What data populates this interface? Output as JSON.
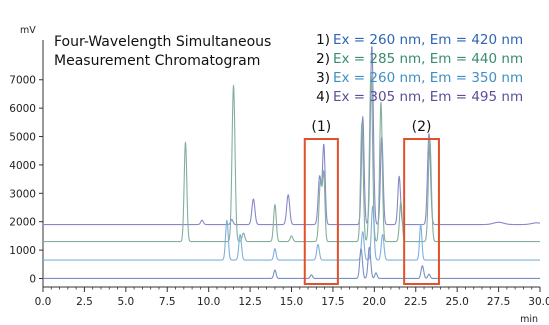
{
  "chart_data": {
    "type": "line",
    "title": "Four-Wavelength Simultaneous\nMeasurement Chromatogram",
    "title_lines": [
      "Four-Wavelength Simultaneous",
      "Measurement Chromatogram"
    ],
    "y_unit": "mV",
    "x_unit": "min",
    "xlim": [
      0.0,
      30.0
    ],
    "ylim": [
      -300,
      8400
    ],
    "x_ticks": [
      "0.0",
      "2.5",
      "5.0",
      "7.5",
      "10.0",
      "12.5",
      "15.0",
      "17.5",
      "20.0",
      "22.5",
      "25.0",
      "27.5",
      "30.0"
    ],
    "y_ticks": [
      "0",
      "1000",
      "2000",
      "3000",
      "4000",
      "5000",
      "6000",
      "7000"
    ],
    "legend_position": "top-right",
    "legend": [
      {
        "number": "1)",
        "label": "Ex = 260 nm, Em = 420 nm",
        "color": "#2c66b5"
      },
      {
        "number": "2)",
        "label": "Ex = 285 nm, Em = 440 nm",
        "color": "#3a8c74"
      },
      {
        "number": "3)",
        "label": "Ex = 260 nm, Em = 350 nm",
        "color": "#3f8fc6"
      },
      {
        "number": "4)",
        "label": "Ex = 305 nm, Em = 495 nm",
        "color": "#5c4f9a"
      }
    ],
    "regions": [
      {
        "label": "(1)",
        "x_range": [
          15.8,
          17.8
        ],
        "color": "#e0502a"
      },
      {
        "label": "(2)",
        "x_range": [
          21.8,
          23.9
        ],
        "color": "#e0502a"
      }
    ],
    "series": [
      {
        "color": "#8888c8",
        "baseline": 1900,
        "peaks": [
          {
            "rt": 9.6,
            "height": 150,
            "width": 0.08
          },
          {
            "rt": 11.4,
            "height": 180,
            "width": 0.07
          },
          {
            "rt": 12.7,
            "height": 900,
            "width": 0.09
          },
          {
            "rt": 14.8,
            "height": 1050,
            "width": 0.09
          },
          {
            "rt": 16.7,
            "height": 1700,
            "width": 0.09
          },
          {
            "rt": 16.95,
            "height": 2800,
            "width": 0.08
          },
          {
            "rt": 19.3,
            "height": 3800,
            "width": 0.08
          },
          {
            "rt": 19.85,
            "height": 6300,
            "width": 0.09
          },
          {
            "rt": 20.45,
            "height": 3100,
            "width": 0.08
          },
          {
            "rt": 21.5,
            "height": 1700,
            "width": 0.08
          },
          {
            "rt": 23.3,
            "height": 3200,
            "width": 0.09
          },
          {
            "rt": 27.5,
            "height": 80,
            "width": 0.3
          },
          {
            "rt": 29.8,
            "height": 60,
            "width": 0.3
          }
        ]
      },
      {
        "color": "#84ae9e",
        "baseline": 1300,
        "peaks": [
          {
            "rt": 8.6,
            "height": 3500,
            "width": 0.08
          },
          {
            "rt": 11.5,
            "height": 5500,
            "width": 0.09
          },
          {
            "rt": 12.1,
            "height": 300,
            "width": 0.08
          },
          {
            "rt": 14.0,
            "height": 1300,
            "width": 0.08
          },
          {
            "rt": 15.0,
            "height": 200,
            "width": 0.08
          },
          {
            "rt": 16.75,
            "height": 2100,
            "width": 0.09
          },
          {
            "rt": 16.95,
            "height": 2300,
            "width": 0.07
          },
          {
            "rt": 19.25,
            "height": 4200,
            "width": 0.08
          },
          {
            "rt": 19.8,
            "height": 6000,
            "width": 0.09
          },
          {
            "rt": 20.4,
            "height": 4900,
            "width": 0.08
          },
          {
            "rt": 21.6,
            "height": 1400,
            "width": 0.08
          },
          {
            "rt": 23.35,
            "height": 3600,
            "width": 0.09
          }
        ]
      },
      {
        "color": "#7fb0da",
        "baseline": 650,
        "peaks": [
          {
            "rt": 11.1,
            "height": 1400,
            "width": 0.08
          },
          {
            "rt": 11.9,
            "height": 900,
            "width": 0.08
          },
          {
            "rt": 14.0,
            "height": 400,
            "width": 0.07
          },
          {
            "rt": 16.6,
            "height": 550,
            "width": 0.08
          },
          {
            "rt": 19.3,
            "height": 1000,
            "width": 0.08
          },
          {
            "rt": 19.9,
            "height": 1900,
            "width": 0.08
          },
          {
            "rt": 20.5,
            "height": 900,
            "width": 0.08
          },
          {
            "rt": 22.8,
            "height": 1250,
            "width": 0.07
          }
        ]
      },
      {
        "color": "#7a8fc4",
        "baseline": 0,
        "peaks": [
          {
            "rt": 14.0,
            "height": 300,
            "width": 0.07
          },
          {
            "rt": 16.2,
            "height": 130,
            "width": 0.07
          },
          {
            "rt": 19.2,
            "height": 1050,
            "width": 0.08
          },
          {
            "rt": 19.7,
            "height": 1100,
            "width": 0.08
          },
          {
            "rt": 20.1,
            "height": 200,
            "width": 0.07
          },
          {
            "rt": 22.9,
            "height": 450,
            "width": 0.08
          },
          {
            "rt": 23.3,
            "height": 150,
            "width": 0.07
          }
        ]
      }
    ]
  }
}
